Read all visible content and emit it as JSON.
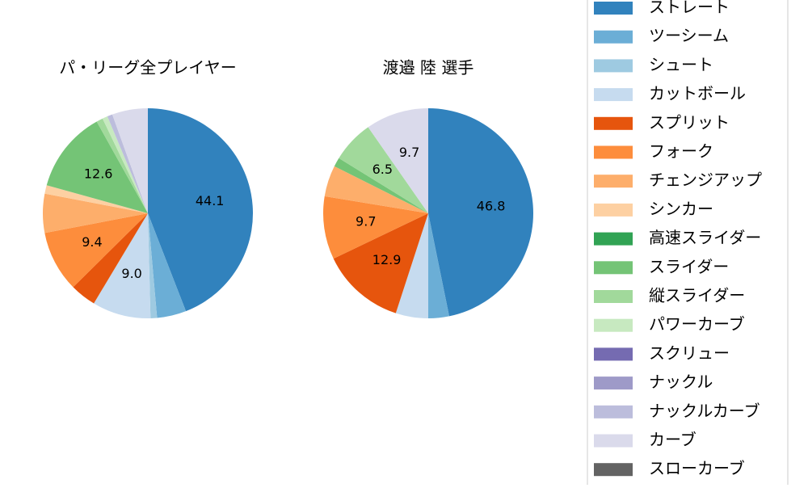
{
  "chart_data": [
    {
      "type": "pie",
      "title": "パ・リーグ全プレイヤー",
      "values": [
        44.1,
        4.5,
        1.0,
        9.0,
        4.0,
        9.4,
        6.0,
        1.3,
        0,
        12.6,
        1.0,
        0.8,
        0,
        0,
        0.8,
        5.5,
        0
      ],
      "value_labels": [
        "44.1",
        null,
        null,
        "9.0",
        null,
        "9.4",
        null,
        null,
        null,
        "12.6",
        null,
        null,
        null,
        null,
        null,
        null,
        null
      ]
    },
    {
      "type": "pie",
      "title": "渡邉 陸  選手",
      "values": [
        46.8,
        3.2,
        0,
        5.0,
        12.9,
        9.7,
        4.8,
        0,
        0,
        1.4,
        6.5,
        0,
        0,
        0,
        0,
        9.7,
        0
      ],
      "value_labels": [
        "46.8",
        null,
        null,
        null,
        "12.9",
        "9.7",
        null,
        null,
        null,
        null,
        "6.5",
        null,
        null,
        null,
        null,
        "9.7",
        null
      ]
    }
  ],
  "legend": {
    "labels": [
      "ストレート",
      "ツーシーム",
      "シュート",
      "カットボール",
      "スプリット",
      "フォーク",
      "チェンジアップ",
      "シンカー",
      "高速スライダー",
      "スライダー",
      "縦スライダー",
      "パワーカーブ",
      "スクリュー",
      "ナックル",
      "ナックルカーブ",
      "カーブ",
      "スローカーブ"
    ],
    "colors": [
      "#3182bd",
      "#6baed6",
      "#9ecae1",
      "#c6dbef",
      "#e6550d",
      "#fd8d3c",
      "#fdae6b",
      "#fdd0a2",
      "#31a354",
      "#74c476",
      "#a1d99b",
      "#c7e9c0",
      "#756bb1",
      "#9e9ac8",
      "#bcbddc",
      "#dadaeb",
      "#636363"
    ]
  }
}
